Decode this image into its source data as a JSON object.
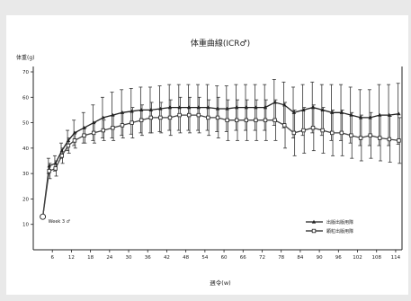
{
  "chart_data": {
    "type": "line",
    "title": "体重曲線(ICR♂)",
    "ylabel": "体重(g)",
    "xlabel": "週令(w)",
    "ylim": [
      0,
      70
    ],
    "yticks": [
      10,
      20,
      30,
      40,
      50,
      60,
      70
    ],
    "xticks": [
      "6",
      "12",
      "18",
      "24",
      "30",
      "36",
      "42",
      "48",
      "54",
      "60",
      "66",
      "72",
      "78",
      "84",
      "90",
      "96",
      "102",
      "108",
      "114"
    ],
    "grid": false,
    "legend_position": "bottom-right",
    "annotation": "Week 3 ♂",
    "annotation_point": {
      "x": 3,
      "y": 13
    },
    "series": [
      {
        "name": "出版出版用隊",
        "marker": "filled-triangle",
        "x": [
          3,
          5,
          7,
          9,
          11,
          13,
          16,
          19,
          22,
          25,
          28,
          31,
          34,
          37,
          40,
          43,
          46,
          49,
          52,
          55,
          58,
          61,
          64,
          67,
          70,
          73,
          76,
          79,
          82,
          85,
          88,
          91,
          94,
          97,
          100,
          103,
          106,
          109,
          112,
          115
        ],
        "values": [
          13,
          33,
          34,
          39,
          43,
          46,
          48,
          50,
          52,
          53,
          54,
          54.5,
          55,
          55,
          55.5,
          56,
          56,
          56,
          56,
          56,
          55.5,
          55.5,
          56,
          56,
          56,
          56,
          58,
          57,
          54,
          55,
          56,
          55,
          54,
          54,
          53,
          52,
          52,
          53,
          53,
          53.5
        ],
        "errors": [
          0,
          3,
          3,
          3,
          4,
          5,
          6,
          7,
          8,
          9,
          9,
          9,
          9,
          9,
          9,
          9,
          9,
          9,
          9,
          9,
          9,
          9,
          9,
          9,
          9,
          9,
          9,
          9,
          10,
          10,
          10,
          10,
          11,
          11,
          11,
          11,
          11,
          12,
          12,
          12
        ]
      },
      {
        "name": "顆粒出版用隊",
        "marker": "open-square",
        "x": [
          3,
          5,
          7,
          9,
          11,
          13,
          16,
          19,
          22,
          25,
          28,
          31,
          34,
          37,
          40,
          43,
          46,
          49,
          52,
          55,
          58,
          61,
          64,
          67,
          70,
          73,
          76,
          79,
          82,
          85,
          88,
          91,
          94,
          97,
          100,
          103,
          106,
          109,
          112,
          115
        ],
        "values": [
          13,
          31,
          32,
          37,
          41,
          43,
          45,
          46,
          47,
          48,
          49,
          50,
          51,
          52,
          52,
          52,
          53,
          53,
          53,
          52,
          52,
          51,
          51,
          51,
          51,
          51,
          51,
          49,
          46,
          47,
          48,
          47,
          46,
          46,
          45,
          44,
          45,
          44,
          43.5,
          43
        ],
        "errors": [
          0,
          3,
          3,
          3,
          3,
          3,
          3,
          4,
          4,
          5,
          5,
          6,
          6,
          6,
          6,
          7,
          7,
          7,
          7,
          7,
          8,
          8,
          8,
          8,
          8,
          8,
          8,
          9,
          9,
          9,
          9,
          9,
          9,
          9,
          9,
          9,
          9,
          9,
          9,
          9
        ]
      }
    ]
  }
}
